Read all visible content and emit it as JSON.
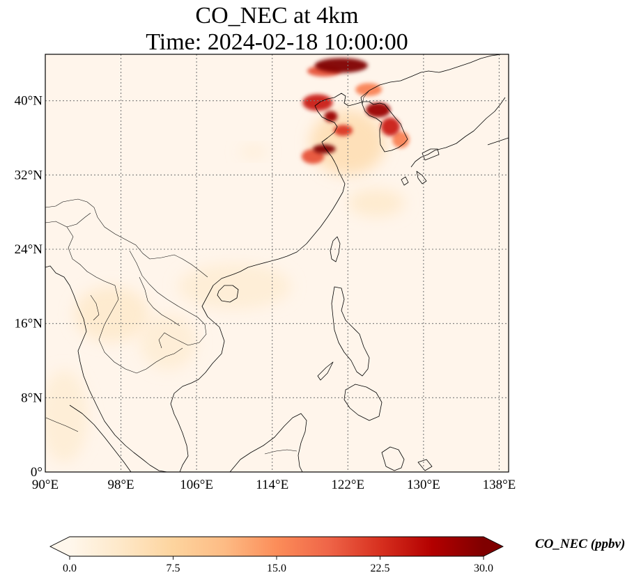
{
  "title": {
    "line1": "CO_NEC at 4km",
    "line2": "Time: 2024-02-18 10:00:00"
  },
  "map": {
    "lon_range": [
      90,
      139
    ],
    "lat_range": [
      0,
      45
    ],
    "lon_ticks": [
      {
        "value": 90,
        "label": "90°E"
      },
      {
        "value": 98,
        "label": "98°E"
      },
      {
        "value": 106,
        "label": "106°E"
      },
      {
        "value": 114,
        "label": "114°E"
      },
      {
        "value": 122,
        "label": "122°E"
      },
      {
        "value": 130,
        "label": "130°E"
      },
      {
        "value": 138,
        "label": "138°E"
      }
    ],
    "lat_ticks": [
      {
        "value": 0,
        "label": "0°"
      },
      {
        "value": 8,
        "label": "8°N"
      },
      {
        "value": 16,
        "label": "16°N"
      },
      {
        "value": 24,
        "label": "24°N"
      },
      {
        "value": 32,
        "label": "32°N"
      },
      {
        "value": 40,
        "label": "40°N"
      }
    ],
    "gridlines": true,
    "background_color": "#fff5eb",
    "coastline_color": "#000000",
    "colormap": "OrRd",
    "plumes": [
      {
        "lon": 121.3,
        "lat": 43.8,
        "value": 30,
        "rx": 2.8,
        "ry": 0.8
      },
      {
        "lon": 119.5,
        "lat": 43.2,
        "value": 20,
        "rx": 1.8,
        "ry": 0.6
      },
      {
        "lon": 118.8,
        "lat": 39.8,
        "value": 24,
        "rx": 1.6,
        "ry": 0.9
      },
      {
        "lon": 120.2,
        "lat": 38.3,
        "value": 28,
        "rx": 0.7,
        "ry": 0.6
      },
      {
        "lon": 121.5,
        "lat": 36.8,
        "value": 22,
        "rx": 1.0,
        "ry": 0.6
      },
      {
        "lon": 119.5,
        "lat": 34.8,
        "value": 30,
        "rx": 1.2,
        "ry": 0.5
      },
      {
        "lon": 118.3,
        "lat": 34.0,
        "value": 20,
        "rx": 1.2,
        "ry": 0.8
      },
      {
        "lon": 124.2,
        "lat": 41.2,
        "value": 16,
        "rx": 1.4,
        "ry": 0.7
      },
      {
        "lon": 125.2,
        "lat": 39.0,
        "value": 28,
        "rx": 1.3,
        "ry": 0.8
      },
      {
        "lon": 126.5,
        "lat": 37.2,
        "value": 24,
        "rx": 1.0,
        "ry": 1.0
      },
      {
        "lon": 127.6,
        "lat": 35.8,
        "value": 16,
        "rx": 0.9,
        "ry": 0.9
      },
      {
        "lon": 122.0,
        "lat": 35.5,
        "value": 7,
        "rx": 4.0,
        "ry": 3.5
      },
      {
        "lon": 125.0,
        "lat": 29.0,
        "value": 4,
        "rx": 3.0,
        "ry": 1.5
      },
      {
        "lon": 112.0,
        "lat": 34.5,
        "value": 3,
        "rx": 1.5,
        "ry": 0.6
      },
      {
        "lon": 110.0,
        "lat": 20.0,
        "value": 3,
        "rx": 6.0,
        "ry": 2.5
      },
      {
        "lon": 97.0,
        "lat": 17.0,
        "value": 4,
        "rx": 4.0,
        "ry": 3.0
      },
      {
        "lon": 103.0,
        "lat": 14.0,
        "value": 3,
        "rx": 3.0,
        "ry": 3.0
      },
      {
        "lon": 92.0,
        "lat": 6.0,
        "value": 3,
        "rx": 2.5,
        "ry": 5.0
      }
    ]
  },
  "colorbar": {
    "min": 0.0,
    "max": 30.0,
    "ticks": [
      "0.0",
      "7.5",
      "15.0",
      "22.5",
      "30.0"
    ],
    "label": "CO_NEC (ppbv)",
    "colors": [
      "#fff7ec",
      "#fee8c8",
      "#fdd49e",
      "#fdbb84",
      "#fc8d59",
      "#ef6548",
      "#d7301f",
      "#b30000",
      "#7f0000"
    ]
  }
}
